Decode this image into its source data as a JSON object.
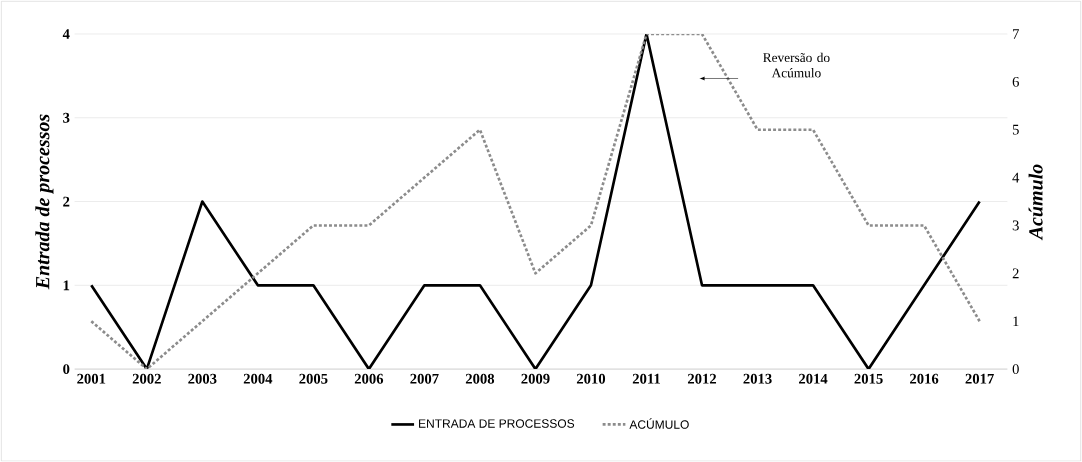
{
  "chart_data": {
    "type": "line",
    "categories": [
      "2001",
      "2002",
      "2003",
      "2004",
      "2005",
      "2006",
      "2007",
      "2008",
      "2009",
      "2010",
      "2011",
      "2012",
      "2013",
      "2014",
      "2015",
      "2016",
      "2017"
    ],
    "series": [
      {
        "name": "ENTRADA DE PROCESSOS",
        "color": "#000000",
        "line_style": "solid",
        "values": [
          1,
          0,
          2,
          1,
          1,
          0,
          1,
          1,
          0,
          1,
          4,
          1,
          1,
          1,
          0,
          1,
          2
        ]
      },
      {
        "name": "ACÚMULO",
        "color": "#8c8c8c",
        "line_style": "dotted",
        "axis": "y2",
        "values": [
          1,
          0,
          1,
          2,
          3,
          3,
          4,
          5,
          2,
          3,
          7,
          7,
          5,
          5,
          3,
          3,
          1
        ]
      }
    ],
    "ylabel": "Entrada de processos",
    "y2label": "Acúmulo",
    "ylim": [
      0,
      4
    ],
    "yticks": [
      0,
      1,
      2,
      3,
      4
    ],
    "y2lim": [
      0,
      7
    ],
    "y2ticks": [
      0,
      1,
      2,
      3,
      4,
      5,
      6,
      7
    ],
    "annotations": [
      "Reversão do Acúmulo"
    ],
    "grid": "y",
    "legend": "bottom",
    "marker": "none"
  }
}
